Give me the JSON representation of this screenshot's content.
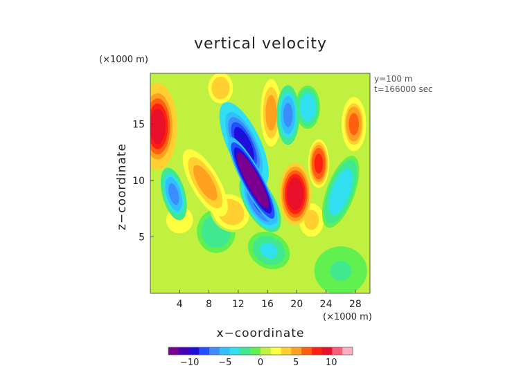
{
  "chart_data": {
    "type": "heatmap",
    "title": "vertical velocity",
    "xlabel": "x−coordinate",
    "ylabel": "z−coordinate",
    "x_unit": "(×1000 m)",
    "y_unit": "(×1000 m)",
    "annotations": [
      "y=100 m",
      "t=166000 sec"
    ],
    "xlim": [
      0,
      30
    ],
    "ylim": [
      0,
      19.5
    ],
    "x_ticks": [
      4,
      8,
      12,
      16,
      20,
      24,
      28
    ],
    "y_ticks": [
      5,
      10,
      15
    ],
    "colorbar": {
      "range": [
        -13,
        13
      ],
      "ticks": [
        -10,
        -5,
        0,
        5,
        10
      ],
      "colors": [
        "#7a0090",
        "#4a00b8",
        "#1e10d8",
        "#2050ff",
        "#3c8cff",
        "#30c0ff",
        "#30e0f0",
        "#40e890",
        "#60f050",
        "#c0f040",
        "#ffff40",
        "#ffd030",
        "#ffa020",
        "#ff6010",
        "#ff2010",
        "#e8102a",
        "#ff5c7a",
        "#ffb0c0"
      ]
    },
    "features": [
      {
        "x": 14.0,
        "z": 10.0,
        "sx": 1.2,
        "sz": 3.6,
        "rot": -28,
        "value": -16
      },
      {
        "x": 12.8,
        "z": 13.2,
        "sx": 1.9,
        "sz": 3.4,
        "rot": -25,
        "value": -9
      },
      {
        "x": 15.0,
        "z": 8.0,
        "sx": 1.7,
        "sz": 2.4,
        "rot": -30,
        "value": -8
      },
      {
        "x": 18.8,
        "z": 15.8,
        "sx": 1.3,
        "sz": 2.2,
        "rot": 0,
        "value": -6
      },
      {
        "x": 21.5,
        "z": 16.5,
        "sx": 1.4,
        "sz": 1.6,
        "rot": 0,
        "value": -4
      },
      {
        "x": 3.2,
        "z": 8.8,
        "sx": 1.3,
        "sz": 2.0,
        "rot": -15,
        "value": -6
      },
      {
        "x": 26.0,
        "z": 9.0,
        "sx": 1.6,
        "sz": 2.8,
        "rot": 20,
        "value": -4
      },
      {
        "x": 16.2,
        "z": 3.8,
        "sx": 2.5,
        "sz": 1.3,
        "rot": 30,
        "value": -3
      },
      {
        "x": 9.0,
        "z": 5.5,
        "sx": 2.2,
        "sz": 1.6,
        "rot": 0,
        "value": -2.5
      },
      {
        "x": 26.0,
        "z": 2.0,
        "sx": 3.0,
        "sz": 1.8,
        "rot": 0,
        "value": -1.5
      },
      {
        "x": 1.0,
        "z": 14.8,
        "sx": 2.2,
        "sz": 3.2,
        "rot": 0,
        "value": 9
      },
      {
        "x": 19.8,
        "z": 8.8,
        "sx": 1.8,
        "sz": 2.3,
        "rot": 0,
        "value": 10
      },
      {
        "x": 23.0,
        "z": 11.5,
        "sx": 1.2,
        "sz": 1.8,
        "rot": 0,
        "value": 8
      },
      {
        "x": 27.8,
        "z": 15.0,
        "sx": 1.4,
        "sz": 2.0,
        "rot": 0,
        "value": 6
      },
      {
        "x": 7.5,
        "z": 9.8,
        "sx": 1.6,
        "sz": 2.8,
        "rot": -30,
        "value": 5
      },
      {
        "x": 16.5,
        "z": 16.0,
        "sx": 1.2,
        "sz": 2.5,
        "rot": 0,
        "value": 5
      },
      {
        "x": 9.6,
        "z": 18.2,
        "sx": 1.6,
        "sz": 1.3,
        "rot": 0,
        "value": 4
      },
      {
        "x": 11.0,
        "z": 7.2,
        "sx": 2.5,
        "sz": 1.4,
        "rot": 40,
        "value": 4
      },
      {
        "x": 22.0,
        "z": 6.5,
        "sx": 1.6,
        "sz": 1.4,
        "rot": 0,
        "value": 3.5
      },
      {
        "x": 4.0,
        "z": 6.5,
        "sx": 2.0,
        "sz": 1.3,
        "rot": 0,
        "value": 2.5
      }
    ]
  }
}
